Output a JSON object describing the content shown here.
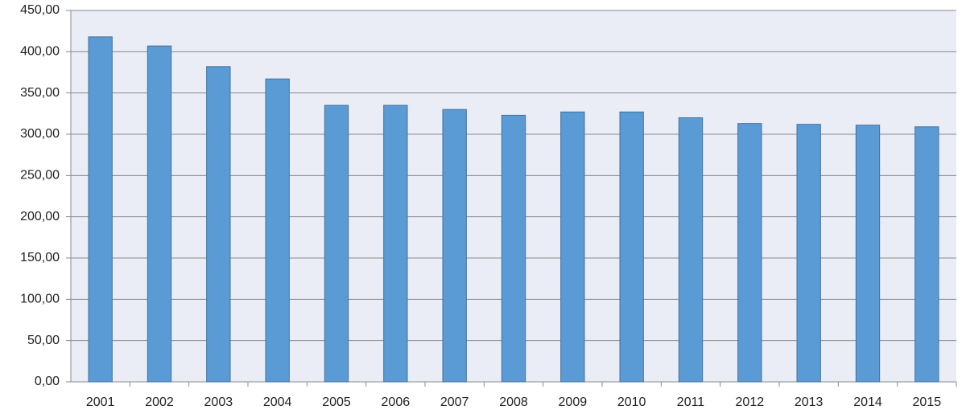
{
  "chart_data": {
    "type": "bar",
    "categories": [
      "2001",
      "2002",
      "2003",
      "2004",
      "2005",
      "2006",
      "2007",
      "2008",
      "2009",
      "2010",
      "2011",
      "2012",
      "2013",
      "2014",
      "2015"
    ],
    "values": [
      418,
      407,
      382,
      367,
      335,
      335,
      330,
      323,
      327,
      327,
      320,
      313,
      312,
      311,
      309
    ],
    "color": "#5b9bd5",
    "ylim": [
      0,
      450
    ],
    "yticks": [
      {
        "value": 0,
        "label": "0,00"
      },
      {
        "value": 50,
        "label": "50,00"
      },
      {
        "value": 100,
        "label": "100,00"
      },
      {
        "value": 150,
        "label": "150,00"
      },
      {
        "value": 200,
        "label": "200,00"
      },
      {
        "value": 250,
        "label": "250,00"
      },
      {
        "value": 300,
        "label": "300,00"
      },
      {
        "value": 350,
        "label": "350,00"
      },
      {
        "value": 400,
        "label": "400,00"
      },
      {
        "value": 450,
        "label": "450,00"
      }
    ],
    "grid": true
  }
}
